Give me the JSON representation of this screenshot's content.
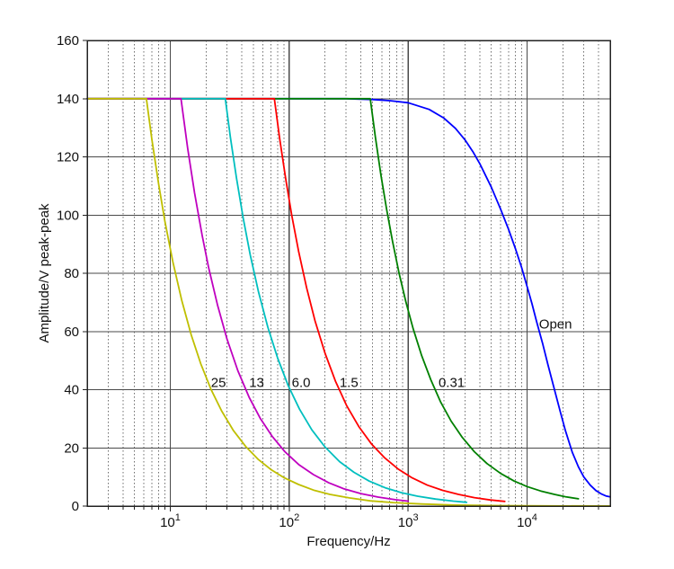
{
  "figure": {
    "background": "#ffffff",
    "frame_color": "#222222",
    "grid_major_color": "#4a4a4a",
    "grid_minor_color": "#6e6e6e",
    "text_color": "#111111"
  },
  "chart_data": {
    "type": "line",
    "title": "",
    "xlabel": "Frequency/Hz",
    "ylabel": "Amplitude/V peak-peak",
    "x_scale": "log",
    "xlim": [
      2,
      50000
    ],
    "ylim": [
      0,
      160
    ],
    "y_ticks": [
      0,
      20,
      40,
      60,
      80,
      100,
      120,
      140,
      160
    ],
    "x_major_ticks": [
      10,
      100,
      1000,
      10000
    ],
    "grid": {
      "horizontal": "solid",
      "vertical_major": "solid",
      "vertical_minor": "dotted",
      "minor_grid_on": true
    },
    "legend_position": "none",
    "series": [
      {
        "name": "load-25",
        "label": "25",
        "color": "#bfbf00",
        "flat_level_v": 140,
        "corner_frequency_hz": 6.3,
        "label_pos": {
          "f": 22,
          "v": 41
        },
        "points": [
          [
            2,
            140
          ],
          [
            6.3,
            140
          ],
          [
            7,
            126
          ],
          [
            8,
            110.3
          ],
          [
            9,
            98
          ],
          [
            10.5,
            84
          ],
          [
            12.5,
            70.6
          ],
          [
            15,
            58.8
          ],
          [
            18,
            49
          ],
          [
            22,
            40.1
          ],
          [
            27,
            32.7
          ],
          [
            34,
            25.9
          ],
          [
            43,
            20.5
          ],
          [
            55,
            16
          ],
          [
            70,
            12.6
          ],
          [
            90,
            9.8
          ],
          [
            120,
            7.4
          ],
          [
            160,
            5.5
          ],
          [
            220,
            4.0
          ],
          [
            320,
            2.8
          ],
          [
            480,
            1.8
          ],
          [
            750,
            1.2
          ],
          [
            1300,
            0.7
          ],
          [
            2500,
            0.35
          ],
          [
            6000,
            0.15
          ],
          [
            15000,
            0.06
          ],
          [
            50000,
            0.02
          ]
        ]
      },
      {
        "name": "load-13",
        "label": "13",
        "color": "#bf00bf",
        "flat_level_v": 140,
        "corner_frequency_hz": 12.3,
        "label_pos": {
          "f": 46,
          "v": 41
        },
        "points": [
          [
            2,
            140
          ],
          [
            12.3,
            140
          ],
          [
            14,
            123
          ],
          [
            16,
            107.6
          ],
          [
            18.5,
            93.1
          ],
          [
            21,
            82
          ],
          [
            25,
            68.9
          ],
          [
            30,
            57.4
          ],
          [
            37,
            46.5
          ],
          [
            46,
            37.4
          ],
          [
            57,
            30.2
          ],
          [
            72,
            23.9
          ],
          [
            92,
            18.7
          ],
          [
            120,
            14.3
          ],
          [
            160,
            10.8
          ],
          [
            215,
            8.0
          ],
          [
            290,
            5.9
          ],
          [
            400,
            4.3
          ],
          [
            560,
            3.1
          ],
          [
            780,
            2.2
          ],
          [
            1000,
            1.7
          ]
        ]
      },
      {
        "name": "load-6.0",
        "label": "6.0",
        "color": "#00bfbf",
        "flat_level_v": 140,
        "corner_frequency_hz": 29,
        "label_pos": {
          "f": 105,
          "v": 41
        },
        "points": [
          [
            2,
            140
          ],
          [
            29,
            140
          ],
          [
            32,
            126.9
          ],
          [
            36,
            112.8
          ],
          [
            41,
            99
          ],
          [
            47,
            86.4
          ],
          [
            55,
            73.8
          ],
          [
            66,
            61.5
          ],
          [
            80,
            50.8
          ],
          [
            98,
            41.4
          ],
          [
            122,
            33.3
          ],
          [
            155,
            26.2
          ],
          [
            200,
            20.3
          ],
          [
            265,
            15.3
          ],
          [
            350,
            11.6
          ],
          [
            470,
            8.6
          ],
          [
            640,
            6.3
          ],
          [
            880,
            4.6
          ],
          [
            1200,
            3.4
          ],
          [
            1700,
            2.4
          ],
          [
            2400,
            1.7
          ],
          [
            3100,
            1.3
          ]
        ]
      },
      {
        "name": "load-1.5",
        "label": "1.5",
        "color": "#ff0000",
        "flat_level_v": 140,
        "corner_frequency_hz": 75,
        "label_pos": {
          "f": 265,
          "v": 41
        },
        "points": [
          [
            2,
            140
          ],
          [
            75,
            140
          ],
          [
            83,
            126.5
          ],
          [
            93,
            112.9
          ],
          [
            105,
            100
          ],
          [
            120,
            87.5
          ],
          [
            140,
            75
          ],
          [
            165,
            63.6
          ],
          [
            200,
            52.5
          ],
          [
            245,
            42.9
          ],
          [
            305,
            34.4
          ],
          [
            385,
            27.3
          ],
          [
            490,
            21.4
          ],
          [
            630,
            16.7
          ],
          [
            820,
            12.8
          ],
          [
            1080,
            9.7
          ],
          [
            1450,
            7.2
          ],
          [
            1950,
            5.4
          ],
          [
            2650,
            4.0
          ],
          [
            3600,
            2.9
          ],
          [
            4900,
            2.1
          ],
          [
            6500,
            1.6
          ]
        ]
      },
      {
        "name": "load-0.31",
        "label": "0.31",
        "color": "#008000",
        "flat_level_v": 140,
        "corner_frequency_hz": 480,
        "label_pos": {
          "f": 1800,
          "v": 41
        },
        "points": [
          [
            2,
            140
          ],
          [
            480,
            140
          ],
          [
            530,
            126.8
          ],
          [
            590,
            113.9
          ],
          [
            660,
            101.8
          ],
          [
            740,
            90.8
          ],
          [
            840,
            80
          ],
          [
            960,
            70
          ],
          [
            1100,
            61.1
          ],
          [
            1300,
            51.7
          ],
          [
            1550,
            43.4
          ],
          [
            1870,
            35.9
          ],
          [
            2300,
            29.2
          ],
          [
            2850,
            23.6
          ],
          [
            3600,
            18.7
          ],
          [
            4600,
            14.6
          ],
          [
            6000,
            11.2
          ],
          [
            7800,
            8.6
          ],
          [
            10000,
            6.7
          ],
          [
            13000,
            5.2
          ],
          [
            17000,
            4.0
          ],
          [
            21000,
            3.2
          ],
          [
            27000,
            2.5
          ]
        ]
      },
      {
        "name": "load-open",
        "label": "Open",
        "color": "#0000ff",
        "flat_level_v": 140,
        "corner_frequency_hz": 6200,
        "label_pos": {
          "f": 12600,
          "v": 61
        },
        "points": [
          [
            2,
            140
          ],
          [
            300,
            140
          ],
          [
            500,
            139.7
          ],
          [
            700,
            139.3
          ],
          [
            1000,
            138.6
          ],
          [
            1500,
            136.3
          ],
          [
            2000,
            133.3
          ],
          [
            2500,
            129.8
          ],
          [
            3000,
            125.9
          ],
          [
            3500,
            121.8
          ],
          [
            4000,
            117.7
          ],
          [
            5000,
            109.6
          ],
          [
            6000,
            102
          ],
          [
            7000,
            95
          ],
          [
            8000,
            88.3
          ],
          [
            9000,
            82
          ],
          [
            10000,
            75.5
          ],
          [
            11000,
            69.5
          ],
          [
            12000,
            63.5
          ],
          [
            13500,
            56
          ],
          [
            15000,
            48.5
          ],
          [
            17000,
            40
          ],
          [
            19000,
            32.5
          ],
          [
            21000,
            26
          ],
          [
            24000,
            18.5
          ],
          [
            27000,
            13.5
          ],
          [
            30000,
            10
          ],
          [
            34000,
            7.2
          ],
          [
            38000,
            5.3
          ],
          [
            42000,
            4.2
          ],
          [
            46000,
            3.5
          ],
          [
            49500,
            3.2
          ]
        ]
      }
    ]
  }
}
